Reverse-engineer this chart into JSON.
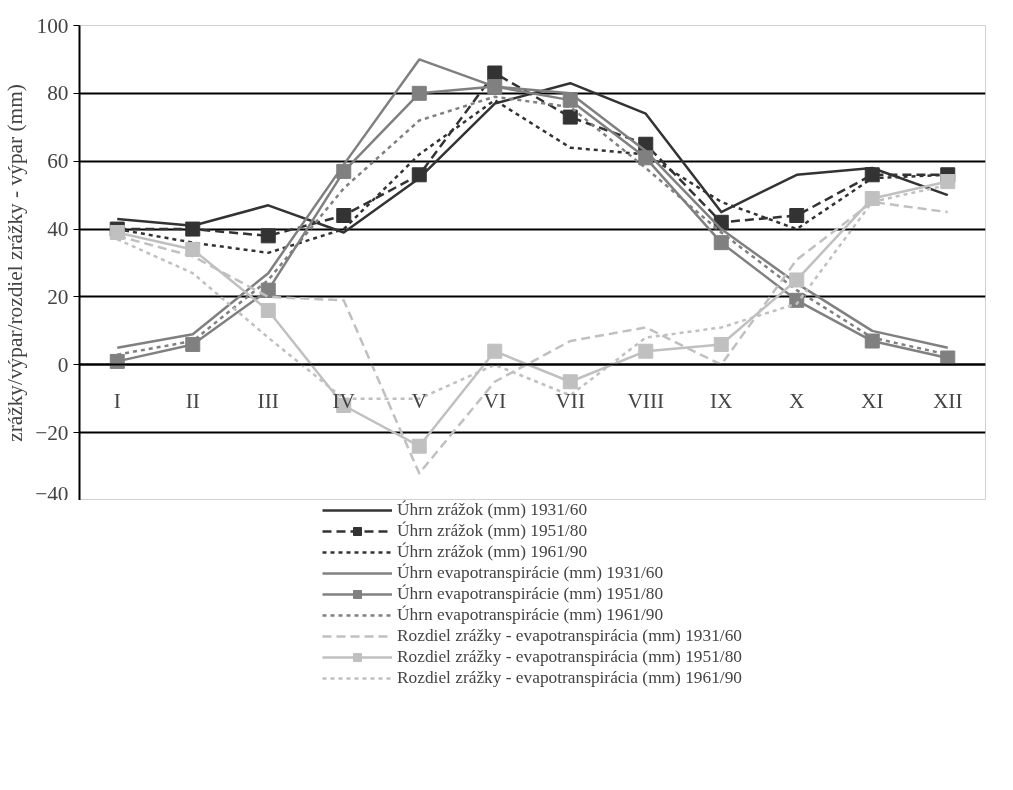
{
  "chart_data": {
    "type": "line",
    "ylabel": "zrážky/výpar/rozdiel zrážky - výpar (mm)",
    "categories": [
      "I",
      "II",
      "III",
      "IV",
      "V",
      "VI",
      "VII",
      "VIII",
      "IX",
      "X",
      "XI",
      "XII"
    ],
    "series": [
      {
        "name": "Úhrn zrážok (mm) 1931/60",
        "color": "#333333",
        "line_style": "solid",
        "marker": "none",
        "values": [
          43,
          41,
          47,
          39,
          55,
          77,
          83,
          74,
          45,
          56,
          58,
          50
        ]
      },
      {
        "name": "Úhrn zrážok (mm) 1951/80",
        "color": "#333333",
        "line_style": "dashed",
        "marker": "square",
        "values": [
          40,
          40,
          38,
          44,
          56,
          86,
          73,
          65,
          42,
          44,
          56,
          56
        ]
      },
      {
        "name": "Úhrn zrážok (mm) 1961/90",
        "color": "#333333",
        "line_style": "dotted",
        "marker": "none",
        "values": [
          40,
          36,
          33,
          40,
          62,
          78,
          64,
          62,
          48,
          40,
          55,
          56
        ]
      },
      {
        "name": "Úhrn evapotranspirácie (mm) 1931/60",
        "color": "#808080",
        "line_style": "solid",
        "marker": "none",
        "values": [
          5,
          9,
          27,
          59,
          90,
          82,
          80,
          63,
          40,
          24,
          10,
          5
        ]
      },
      {
        "name": "Úhrn evapotranspirácie (mm) 1951/80",
        "color": "#808080",
        "line_style": "solid",
        "marker": "square",
        "values": [
          1,
          6,
          22,
          57,
          80,
          82,
          78,
          61,
          36,
          19,
          7,
          2
        ]
      },
      {
        "name": "Úhrn evapotranspirácie (mm) 1961/90",
        "color": "#808080",
        "line_style": "dotted",
        "marker": "none",
        "values": [
          3,
          7,
          25,
          52,
          72,
          79,
          76,
          58,
          39,
          22,
          8,
          3
        ]
      },
      {
        "name": "Rozdiel zrážky - evapotranspirácia (mm) 1931/60",
        "color": "#c0c0c0",
        "line_style": "dashed",
        "marker": "none",
        "values": [
          38,
          32,
          20,
          19,
          -32,
          -5,
          7,
          11,
          0,
          31,
          48,
          45
        ]
      },
      {
        "name": "Rozdiel zrážky - evapotranspirácia (mm) 1951/80",
        "color": "#c0c0c0",
        "line_style": "solid",
        "marker": "square",
        "values": [
          39,
          34,
          16,
          -12,
          -24,
          4,
          -5,
          4,
          6,
          25,
          49,
          54
        ]
      },
      {
        "name": "Rozdiel zrážky - evapotranspirácia (mm) 1961/90",
        "color": "#c0c0c0",
        "line_style": "dotted",
        "marker": "none",
        "values": [
          37,
          27,
          8,
          -10,
          -10,
          0,
          -9,
          8,
          11,
          18,
          48,
          53
        ]
      }
    ],
    "ylim": [
      -40,
      100
    ],
    "yticks": [
      -40,
      -20,
      0,
      20,
      40,
      60,
      80,
      100
    ],
    "grid": "y",
    "legend": "bottom"
  }
}
